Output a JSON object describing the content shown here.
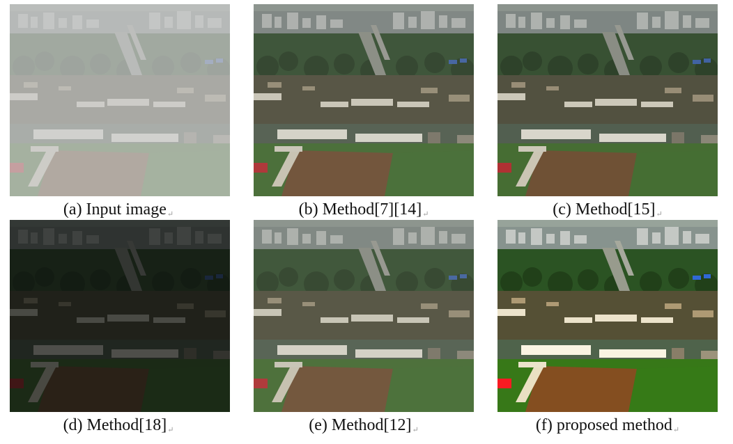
{
  "panels": [
    {
      "id": "a",
      "caption": "(a) Input image",
      "look": "hazy"
    },
    {
      "id": "b",
      "caption": "(b) Method[7][14]",
      "look": "dehazed"
    },
    {
      "id": "c",
      "caption": "(c) Method[15]",
      "look": "dehazed"
    },
    {
      "id": "d",
      "caption": "(d) Method[18]",
      "look": "dark"
    },
    {
      "id": "e",
      "caption": "(e) Method[12]",
      "look": "dehazed"
    },
    {
      "id": "f",
      "caption": "(f) proposed method",
      "look": "vivid"
    }
  ],
  "colors": {
    "haze": "#c9cbcb",
    "field_green": "#3f6a2a",
    "field_brown": "#6e4a2c",
    "roof_white": "#e6e2d6",
    "roof_blue": "#3a5fa8",
    "roof_red": "#b8262a"
  }
}
